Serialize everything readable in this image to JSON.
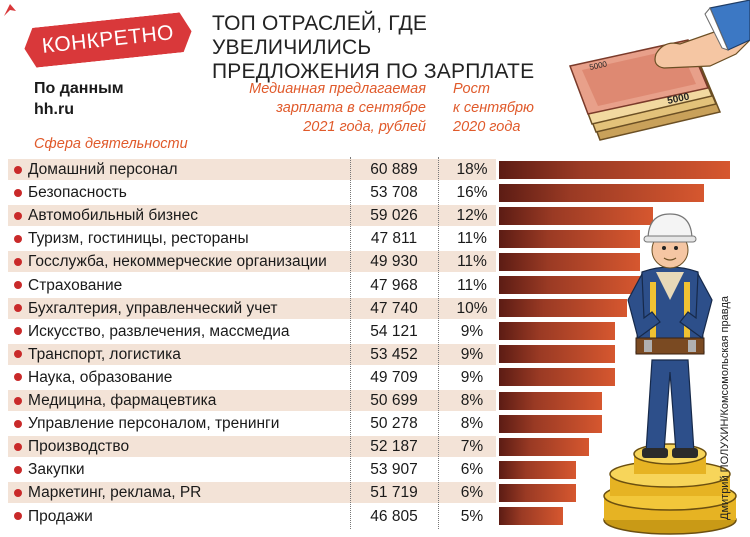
{
  "badge": "КОНКРЕТНО",
  "title_line1": "ТОП ОТРАСЛЕЙ, ГДЕ УВЕЛИЧИЛИСЬ",
  "title_line2": "ПРЕДЛОЖЕНИЯ ПО ЗАРПЛАТЕ",
  "source_line1": "По данным",
  "source_line2": "hh.ru",
  "col_sphere": "Сфера деятельности",
  "col_salary_1": "Медианная предлагаемая",
  "col_salary_2": "зарплата в сентябре",
  "col_salary_3": "2021 года, рублей",
  "col_growth_1": "Рост",
  "col_growth_2": "к сентябрю",
  "col_growth_3": "2020 года",
  "banknote_label": "5000",
  "credit": "Дмитрий ПОЛУХИН/Комсомольская правда",
  "colors": {
    "accent": "#d9383a",
    "header_text": "#e05a2b",
    "row_stripe": "#f3e3d7",
    "bar_dark": "#5c1c14",
    "bar_light": "#d6572f"
  },
  "chart_data": {
    "type": "bar",
    "orientation": "horizontal",
    "title": "ТОП ОТРАСЛЕЙ, ГДЕ УВЕЛИЧИЛИСЬ ПРЕДЛОЖЕНИЯ ПО ЗАРПЛАТЕ",
    "value_unit": "%",
    "xlim": [
      0,
      18
    ],
    "rows": [
      {
        "name": "Домашний персонал",
        "salary": "60 889",
        "growth": 18,
        "growth_label": "18%"
      },
      {
        "name": "Безопасность",
        "salary": "53 708",
        "growth": 16,
        "growth_label": "16%"
      },
      {
        "name": "Автомобильный бизнес",
        "salary": "59 026",
        "growth": 12,
        "growth_label": "12%"
      },
      {
        "name": "Туризм, гостиницы, рестораны",
        "salary": "47 811",
        "growth": 11,
        "growth_label": "11%"
      },
      {
        "name": "Госслужба, некоммерческие организации",
        "salary": "49 930",
        "growth": 11,
        "growth_label": "11%"
      },
      {
        "name": "Страхование",
        "salary": "47 968",
        "growth": 11,
        "growth_label": "11%"
      },
      {
        "name": "Бухгалтерия, управленческий учет",
        "salary": "47 740",
        "growth": 10,
        "growth_label": "10%"
      },
      {
        "name": "Искусство, развлечения, массмедиа",
        "salary": "54 121",
        "growth": 9,
        "growth_label": "9%"
      },
      {
        "name": "Транспорт, логистика",
        "salary": "53 452",
        "growth": 9,
        "growth_label": "9%"
      },
      {
        "name": "Наука, образование",
        "salary": "49 709",
        "growth": 9,
        "growth_label": "9%"
      },
      {
        "name": "Медицина, фармацевтика",
        "salary": "50 699",
        "growth": 8,
        "growth_label": "8%"
      },
      {
        "name": "Управление персоналом, тренинги",
        "salary": "50 278",
        "growth": 8,
        "growth_label": "8%"
      },
      {
        "name": "Производство",
        "salary": "52 187",
        "growth": 7,
        "growth_label": "7%"
      },
      {
        "name": "Закупки",
        "salary": "53 907",
        "growth": 6,
        "growth_label": "6%"
      },
      {
        "name": "Маркетинг, реклама, PR",
        "salary": "51 719",
        "growth": 6,
        "growth_label": "6%"
      },
      {
        "name": "Продажи",
        "salary": "46 805",
        "growth": 5,
        "growth_label": "5%"
      }
    ]
  }
}
